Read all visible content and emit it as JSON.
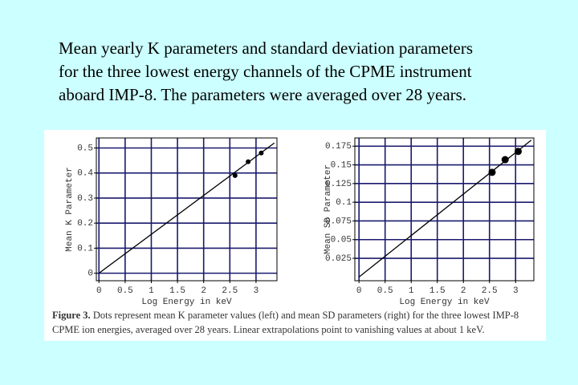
{
  "title_lines": [
    "Mean yearly K parameters and standard deviation parameters",
    "for the three lowest energy channels of the CPME instrument",
    "aboard IMP-8. The parameters were averaged over 28 years."
  ],
  "caption": {
    "label": "Figure 3.",
    "lines": [
      "Dots represent mean K parameter values (left) and mean SD parameters (right)  for the three lowest IMP-8",
      "CPME ion energies, averaged over 28 years.  Linear extrapolations point to vanishing values at about 1 keV."
    ]
  },
  "chart_data": [
    {
      "type": "scatter",
      "x_label": "Log Energy in keV",
      "y_label": "Mean K Parameter",
      "x": [
        2.6,
        2.85,
        3.1
      ],
      "values": [
        0.39,
        0.445,
        0.48
      ],
      "color": "#000000",
      "fit": {
        "x": [
          0,
          3.35
        ],
        "values": [
          0,
          0.52
        ]
      },
      "xlim": [
        -0.05,
        3.4
      ],
      "ylim": [
        -0.03,
        0.54
      ],
      "xticks": [
        0,
        0.5,
        1,
        1.5,
        2,
        2.5,
        3
      ],
      "yticks": [
        0,
        0.1,
        0.2,
        0.3,
        0.4,
        0.5
      ],
      "grid": true,
      "grid_color": "#1a1a6e"
    },
    {
      "type": "scatter",
      "x_label": "Log Energy in keV",
      "y_label": "Mean SD Parameter",
      "x": [
        2.55,
        2.8,
        3.05
      ],
      "values": [
        0.14,
        0.157,
        0.168
      ],
      "color": "#000000",
      "fit": {
        "x": [
          0,
          3.3
        ],
        "values": [
          0,
          0.183
        ]
      },
      "xlim": [
        -0.08,
        3.35
      ],
      "ylim": [
        -0.005,
        0.186
      ],
      "xticks": [
        0,
        0.5,
        1,
        1.5,
        2,
        2.5,
        3
      ],
      "yticks": [
        0.025,
        0.05,
        0.075,
        0.1,
        0.125,
        0.15,
        0.175
      ],
      "grid": true,
      "grid_color": "#1a1a6e"
    }
  ]
}
